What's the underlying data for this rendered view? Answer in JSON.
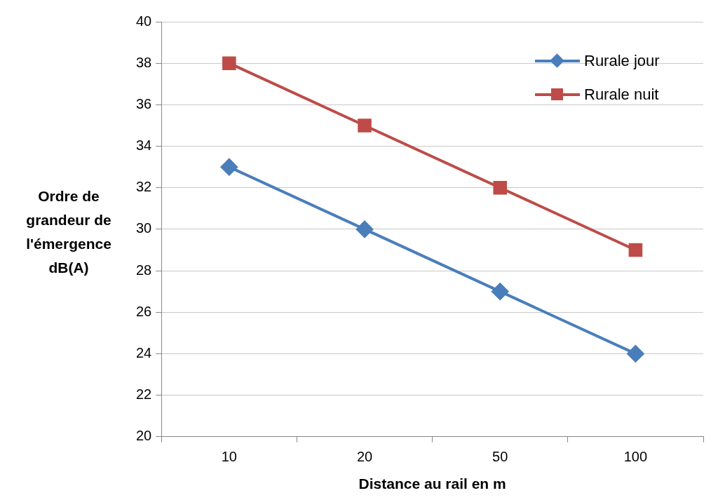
{
  "chart_data": {
    "type": "line",
    "xlabel": "Distance au rail en m",
    "ylabel": "Ordre de grandeur de l'émergence dB(A)",
    "categories": [
      "10",
      "20",
      "50",
      "100"
    ],
    "ylim": [
      20,
      40
    ],
    "yticks": [
      20,
      22,
      24,
      26,
      28,
      30,
      32,
      34,
      36,
      38,
      40
    ],
    "grid": "y",
    "legend": "top right",
    "line_style": "solid",
    "series": [
      {
        "name": "Rurale jour",
        "color": "#4a7ebb",
        "marker": "diamond",
        "values": [
          33,
          30,
          27,
          24
        ]
      },
      {
        "name": "Rurale nuit",
        "color": "#be4b48",
        "marker": "square",
        "values": [
          38,
          35,
          32,
          29
        ]
      }
    ]
  }
}
